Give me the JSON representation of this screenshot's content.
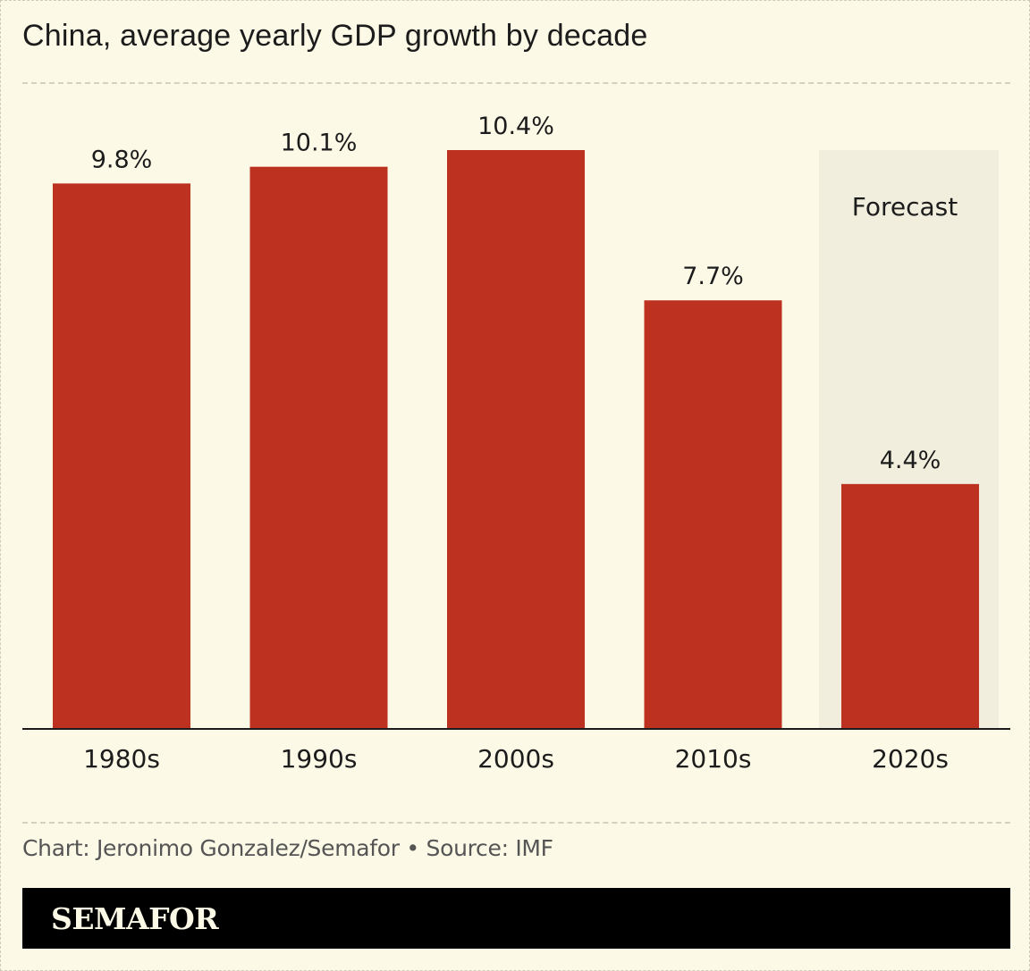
{
  "title": "China, average yearly GDP growth by decade",
  "footer": {
    "credit": "Chart: Jeronimo Gonzalez/Semafor • Source: IMF",
    "brand": "SEMAFOR"
  },
  "colors": {
    "background": "#fcf9e6",
    "bar": "#bc3120",
    "forecast_shade": "#f1eedd",
    "text": "#1c1c1c",
    "brand_bar": "#000000"
  },
  "chart_data": {
    "type": "bar",
    "title": "China, average yearly GDP growth by decade",
    "categories": [
      "1980s",
      "1990s",
      "2000s",
      "2010s",
      "2020s"
    ],
    "values": [
      9.8,
      10.1,
      10.4,
      7.7,
      4.4
    ],
    "value_labels": [
      "9.8%",
      "10.1%",
      "10.4%",
      "7.7%",
      "4.4%"
    ],
    "unit": "%",
    "ylim": [
      0,
      10.4
    ],
    "forecast": {
      "category": "2020s",
      "label": "Forecast"
    },
    "grid": false,
    "legend": "none"
  }
}
